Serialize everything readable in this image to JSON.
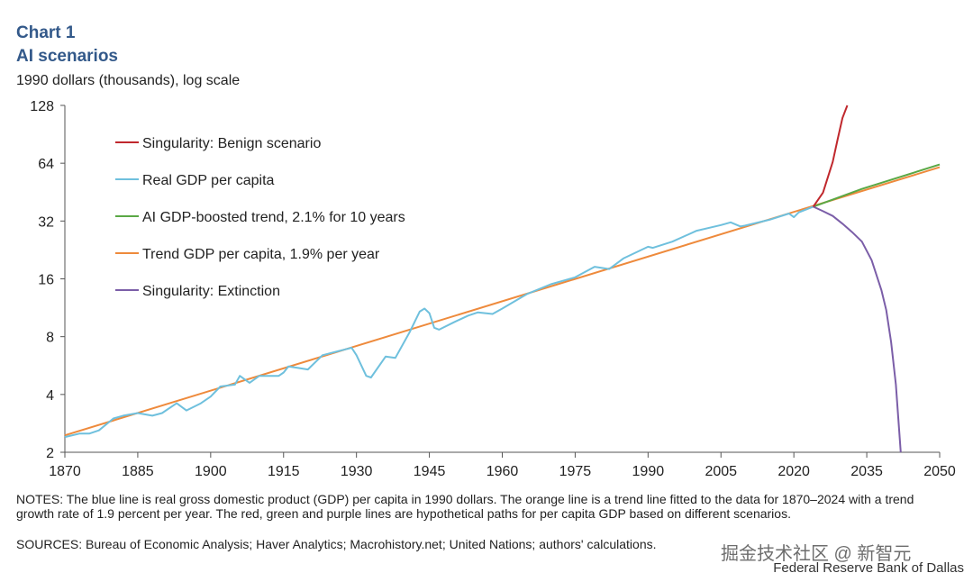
{
  "header": {
    "chart_number": "Chart 1",
    "title": "AI scenarios",
    "unit": "1990 dollars (thousands),  log scale"
  },
  "notes": "NOTES: The blue line is real gross domestic product (GDP) per capita in 1990 dollars. The orange line is a trend line fitted to the data for 1870–2024 with a trend growth rate of 1.9 percent per year. The red, green and purple lines are hypothetical paths for per capita GDP based on different scenarios.",
  "sources": "SOURCES: Bureau of Economic Analysis; Haver Analytics; Macrohistory.net; United Nations; authors' calculations.",
  "credit": "Federal Reserve Bank of Dallas",
  "watermark": "掘金技术社区 @ 新智元",
  "chart_data": {
    "type": "line",
    "title": "AI scenarios",
    "xlabel": "",
    "ylabel": "1990 dollars (thousands), log scale",
    "xlim": [
      1870,
      2050
    ],
    "ylim": [
      2,
      128
    ],
    "yscale": "log2",
    "xticks": [
      "1870",
      "1885",
      "1900",
      "1915",
      "1930",
      "1945",
      "1960",
      "1975",
      "1990",
      "2005",
      "2020",
      "2035",
      "2050"
    ],
    "yticks": [
      "2",
      "4",
      "8",
      "16",
      "32",
      "64",
      "128"
    ],
    "legend_position": "top-left",
    "series": [
      {
        "name": "Singularity: Benign scenario",
        "color": "#c0282d",
        "x": [
          2024,
          2026,
          2028,
          2029,
          2030,
          2031
        ],
        "y": [
          38,
          45,
          65,
          85,
          110,
          128
        ]
      },
      {
        "name": "Real GDP per capita",
        "color": "#6fc0dd",
        "x": [
          1870,
          1873,
          1875,
          1877,
          1880,
          1882,
          1885,
          1888,
          1890,
          1893,
          1895,
          1898,
          1900,
          1902,
          1905,
          1906,
          1908,
          1910,
          1914,
          1915,
          1916,
          1918,
          1920,
          1923,
          1926,
          1929,
          1930,
          1932,
          1933,
          1936,
          1938,
          1941,
          1943,
          1944,
          1945,
          1946,
          1947,
          1950,
          1953,
          1955,
          1958,
          1960,
          1965,
          1970,
          1975,
          1979,
          1982,
          1985,
          1990,
          1991,
          1995,
          2000,
          2005,
          2007,
          2009,
          2010,
          2015,
          2019,
          2020,
          2021,
          2024
        ],
        "y": [
          2.4,
          2.5,
          2.5,
          2.6,
          3.0,
          3.1,
          3.2,
          3.1,
          3.2,
          3.6,
          3.3,
          3.6,
          3.9,
          4.4,
          4.5,
          5.0,
          4.6,
          5.0,
          5.0,
          5.2,
          5.6,
          5.5,
          5.4,
          6.4,
          6.7,
          7.0,
          6.4,
          5.0,
          4.9,
          6.3,
          6.2,
          8.5,
          10.8,
          11.2,
          10.6,
          8.9,
          8.7,
          9.5,
          10.3,
          10.7,
          10.5,
          11.2,
          13.3,
          15.0,
          16.3,
          18.5,
          18.0,
          20.5,
          23.5,
          23.2,
          25.0,
          28.5,
          30.5,
          31.5,
          30.0,
          30.3,
          32.5,
          35.0,
          33.5,
          35.5,
          38.0
        ]
      },
      {
        "name": "AI GDP-boosted trend, 2.1% for 10 years",
        "color": "#5aa845",
        "x": [
          2024,
          2034,
          2050
        ],
        "y": [
          38,
          47,
          63
        ]
      },
      {
        "name": "Trend GDP per capita, 1.9% per year",
        "color": "#ee8a3c",
        "x": [
          1870,
          2050
        ],
        "y": [
          2.45,
          61
        ]
      },
      {
        "name": "Singularity: Extinction",
        "color": "#7b5ea8",
        "x": [
          2024,
          2026,
          2028,
          2030,
          2032,
          2034,
          2036,
          2038,
          2039,
          2040,
          2041,
          2041.5,
          2042
        ],
        "y": [
          38,
          36,
          34,
          31,
          28,
          25,
          20,
          14,
          11,
          7.5,
          4.5,
          3,
          2
        ]
      }
    ]
  }
}
